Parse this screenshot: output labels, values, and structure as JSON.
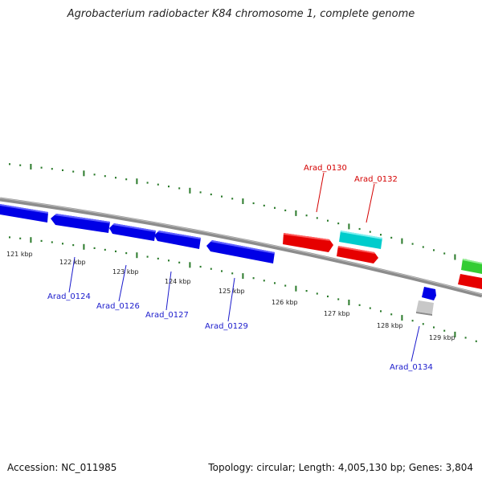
{
  "title": "Agrobacterium radiobacter K84 chromosome 1, complete genome",
  "footer": {
    "accession": "Accession: NC_011985",
    "summary": "Topology: circular; Length: 4,005,130 bp; Genes: 3,804"
  },
  "colors": {
    "forward_gene": "#e60000",
    "reverse_gene": "#0000e6",
    "rna_gene": "#00cccc",
    "other_gene": "#c8c8c8",
    "green_gene": "#33cc33",
    "backbone": "#8c8c8c",
    "ticks": "#2a7a2a",
    "forward_label": "#d40000",
    "reverse_label": "#1a1acc"
  },
  "scale_labels": [
    "121 kbp",
    "122 kbp",
    "123 kbp",
    "124 kbp",
    "125 kbp",
    "126 kbp",
    "127 kbp",
    "128 kbp",
    "129 kbp"
  ],
  "gene_labels": [
    "Arad_0124",
    "Arad_0126",
    "Arad_0127",
    "Arad_0129",
    "Arad_0130",
    "Arad_0132",
    "Arad_0134"
  ]
}
